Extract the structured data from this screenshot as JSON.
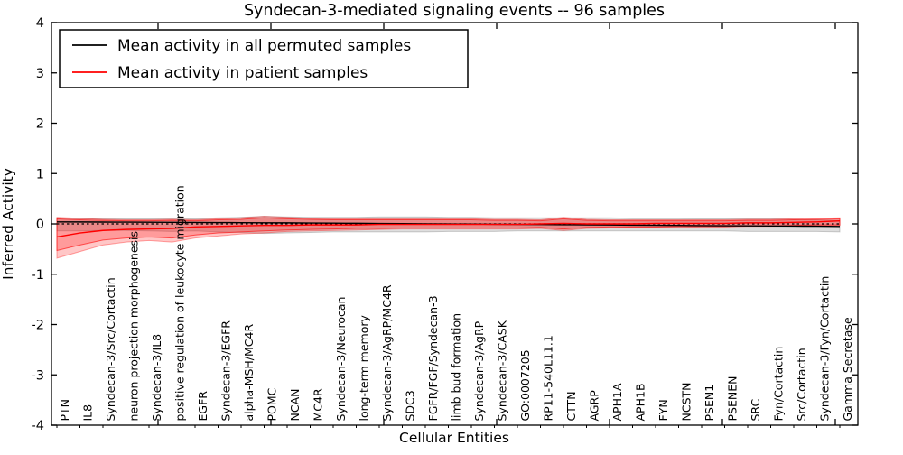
{
  "chart_data": {
    "type": "line",
    "title": "Syndecan-3-mediated signaling events -- 96 samples",
    "xlabel": "Cellular Entities",
    "ylabel": "Inferred Activity",
    "ylim": [
      -4,
      4
    ],
    "yticks": [
      4,
      3,
      2,
      1,
      0,
      -1,
      -2,
      -3,
      -4
    ],
    "grid": false,
    "legend_position": "upper left",
    "colors": {
      "permuted_line": "#000000",
      "patient_line": "#ff0000",
      "permuted_band_fill": "rgba(0,0,0,0.13)",
      "patient_band_fill": "rgba(255,0,0,0.22)",
      "axes": "#000000"
    },
    "categories": [
      "PTN",
      "IL8",
      "Syndecan-3/Src/Cortactin",
      "neuron projection morphogenesis",
      "Syndecan-3/IL8",
      "positive regulation of leukocyte migration",
      "EGFR",
      "Syndecan-3/EGFR",
      "alpha-MSH/MC4R",
      "POMC",
      "NCAN",
      "MC4R",
      "Syndecan-3/Neurocan",
      "long-term memory",
      "Syndecan-3/AgRP/MC4R",
      "SDC3",
      "FGFR/FGF/Syndecan-3",
      "limb bud formation",
      "Syndecan-3/AgRP",
      "Syndecan-3/CASK",
      "GO:0007205",
      "RP11-540L11.1",
      "CTTN",
      "AGRP",
      "APH1A",
      "APH1B",
      "FYN",
      "NCSTN",
      "PSEN1",
      "PSENEN",
      "SRC",
      "Fyn/Cortactin",
      "Src/Cortactin",
      "Syndecan-3/Fyn/Cortactin",
      "Gamma Secretase"
    ],
    "series": [
      {
        "name": "Mean activity in all permuted samples",
        "color": "#000000",
        "style": "solid",
        "values": [
          0.04,
          0.038,
          0.036,
          0.034,
          0.032,
          0.03,
          0.028,
          0.026,
          0.024,
          0.022,
          0.02,
          0.017,
          0.014,
          0.011,
          0.008,
          0.005,
          0.002,
          -0.001,
          -0.004,
          -0.007,
          -0.01,
          -0.013,
          -0.016,
          -0.019,
          -0.022,
          -0.025,
          -0.028,
          -0.031,
          -0.034,
          -0.037,
          -0.04,
          -0.042,
          -0.044,
          -0.046,
          -0.05
        ]
      },
      {
        "name": "Mean activity in patient samples",
        "color": "#ff0000",
        "style": "solid",
        "values": [
          -0.26,
          -0.18,
          -0.13,
          -0.11,
          -0.1,
          -0.09,
          -0.06,
          -0.05,
          -0.04,
          -0.03,
          -0.03,
          -0.02,
          -0.02,
          -0.02,
          -0.01,
          -0.01,
          -0.01,
          -0.01,
          -0.01,
          -0.01,
          -0.01,
          0,
          0.01,
          0,
          0,
          0,
          0.01,
          0.01,
          0.01,
          0.01,
          0.02,
          0.02,
          0.03,
          0.04,
          0.06
        ]
      }
    ],
    "zero_line": {
      "value": 0,
      "style": "dashed",
      "color": "#000000"
    },
    "bands": [
      {
        "name": "permuted-range-band",
        "fill": "rgba(0,0,0,0.13)",
        "edge": "rgba(0,0,0,0.18)",
        "upper": [
          0.12,
          0.11,
          0.1,
          0.1,
          0.1,
          0.11,
          0.1,
          0.12,
          0.13,
          0.15,
          0.14,
          0.13,
          0.13,
          0.13,
          0.14,
          0.14,
          0.14,
          0.13,
          0.13,
          0.12,
          0.12,
          0.12,
          0.12,
          0.12,
          0.12,
          0.11,
          0.11,
          0.11,
          0.1,
          0.1,
          0.1,
          0.1,
          0.09,
          0.08,
          0.07
        ],
        "lower": [
          -0.14,
          -0.14,
          -0.13,
          -0.13,
          -0.14,
          -0.15,
          -0.14,
          -0.16,
          -0.17,
          -0.19,
          -0.18,
          -0.17,
          -0.16,
          -0.16,
          -0.16,
          -0.16,
          -0.16,
          -0.15,
          -0.15,
          -0.15,
          -0.14,
          -0.14,
          -0.14,
          -0.14,
          -0.14,
          -0.14,
          -0.14,
          -0.14,
          -0.14,
          -0.14,
          -0.15,
          -0.15,
          -0.15,
          -0.15,
          -0.16
        ]
      },
      {
        "name": "patient-outer-band",
        "fill": "rgba(255,0,0,0.22)",
        "edge": "rgba(255,0,0,0.35)",
        "upper": [
          0.13,
          0.11,
          0.09,
          0.08,
          0.08,
          0.09,
          0.08,
          0.1,
          0.12,
          0.15,
          0.13,
          0.11,
          0.1,
          0.1,
          0.1,
          0.1,
          0.1,
          0.1,
          0.1,
          0.09,
          0.09,
          0.08,
          0.13,
          0.09,
          0.08,
          0.08,
          0.08,
          0.08,
          0.08,
          0.08,
          0.09,
          0.09,
          0.1,
          0.11,
          0.12
        ],
        "lower": [
          -0.68,
          -0.55,
          -0.42,
          -0.36,
          -0.33,
          -0.36,
          -0.28,
          -0.24,
          -0.2,
          -0.18,
          -0.15,
          -0.14,
          -0.13,
          -0.12,
          -0.11,
          -0.1,
          -0.1,
          -0.1,
          -0.1,
          -0.1,
          -0.1,
          -0.09,
          -0.13,
          -0.09,
          -0.08,
          -0.07,
          -0.07,
          -0.07,
          -0.06,
          -0.06,
          -0.05,
          -0.05,
          -0.04,
          -0.03,
          -0.03
        ]
      },
      {
        "name": "patient-inner-band",
        "fill": "rgba(255,0,0,0.22)",
        "edge": "rgba(255,0,0,0.6)",
        "upper": [
          0.1,
          0.08,
          0.07,
          0.06,
          0.06,
          0.07,
          0.06,
          0.08,
          0.09,
          0.12,
          0.1,
          0.09,
          0.08,
          0.08,
          0.08,
          0.08,
          0.08,
          0.08,
          0.08,
          0.07,
          0.07,
          0.06,
          0.1,
          0.07,
          0.06,
          0.06,
          0.06,
          0.06,
          0.06,
          0.06,
          0.07,
          0.07,
          0.08,
          0.09,
          0.1
        ],
        "lower": [
          -0.53,
          -0.42,
          -0.32,
          -0.28,
          -0.26,
          -0.28,
          -0.22,
          -0.18,
          -0.16,
          -0.14,
          -0.12,
          -0.11,
          -0.1,
          -0.09,
          -0.09,
          -0.08,
          -0.08,
          -0.08,
          -0.08,
          -0.08,
          -0.08,
          -0.07,
          -0.1,
          -0.07,
          -0.06,
          -0.06,
          -0.06,
          -0.05,
          -0.05,
          -0.05,
          -0.04,
          -0.04,
          -0.03,
          -0.02,
          -0.02
        ]
      }
    ],
    "legend": {
      "entries": [
        {
          "label": "Mean activity in all permuted samples",
          "color": "#000000"
        },
        {
          "label": "Mean activity in patient samples",
          "color": "#ff0000"
        }
      ]
    }
  }
}
